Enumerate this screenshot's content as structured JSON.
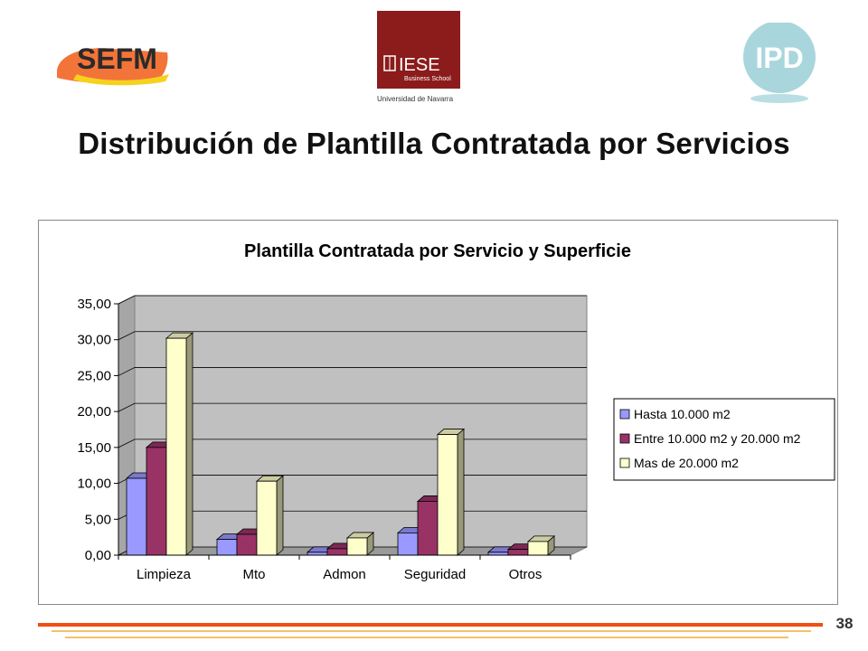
{
  "logos": {
    "sefm_text": "SEFM",
    "iese_text": "IESE",
    "iese_sub": "Business School",
    "iese_univ": "Universidad de Navarra",
    "ipd_text": "IPD"
  },
  "slide": {
    "title": "Distribución de Plantilla Contratada  por Servicios",
    "page_number": "38"
  },
  "colors": {
    "series": [
      "#9999ff",
      "#993366",
      "#ffffcc"
    ],
    "plot_bg": "#c0c0c0",
    "accent_orange": "#f04e12",
    "accent_yellow": "#f5c06a"
  },
  "chart_data": {
    "type": "bar",
    "title": "Plantilla Contratada por Servicio y Superficie",
    "categories": [
      "Limpieza",
      "Mto",
      "Admon",
      "Seguridad",
      "Otros"
    ],
    "series": [
      {
        "name": "Hasta 10.000 m2",
        "values": [
          10.7,
          2.2,
          0.4,
          3.1,
          0.4
        ]
      },
      {
        "name": "Entre 10.000 m2 y 20.000 m2",
        "values": [
          15.0,
          2.9,
          0.9,
          7.5,
          0.8
        ]
      },
      {
        "name": "Mas de 20.000 m2",
        "values": [
          30.2,
          10.3,
          2.4,
          16.8,
          1.9
        ]
      }
    ],
    "ylim": [
      0,
      35
    ],
    "yticks": [
      "0,00",
      "5,00",
      "10,00",
      "15,00",
      "20,00",
      "25,00",
      "30,00",
      "35,00"
    ],
    "ytick_values": [
      0,
      5,
      10,
      15,
      20,
      25,
      30,
      35
    ],
    "grid": true,
    "legend": "right",
    "style": "3d-clustered-column"
  }
}
